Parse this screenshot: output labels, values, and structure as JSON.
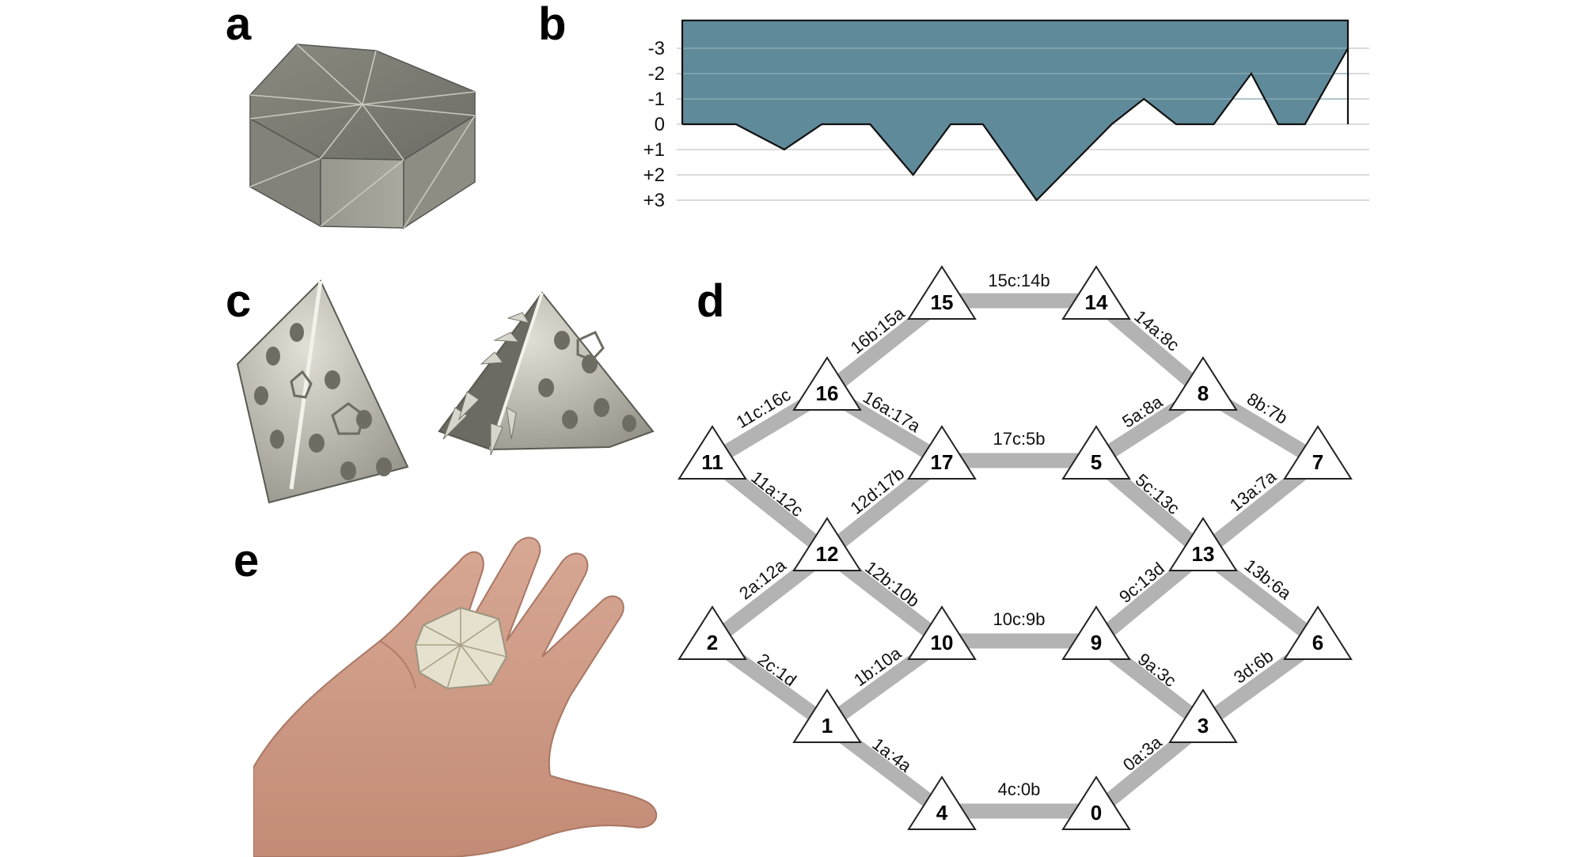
{
  "panels": {
    "a": "a",
    "b": "b",
    "c": "c",
    "d": "d",
    "e": "e"
  },
  "chart_data": {
    "type": "area",
    "title": "",
    "xlabel": "",
    "ylabel": "",
    "y_tick_labels": [
      "-3",
      "-2",
      "-1",
      "0",
      "+1",
      "+2",
      "+3"
    ],
    "y_tick_values": [
      -3,
      -2,
      -1,
      0,
      1,
      2,
      3
    ],
    "ylim": [
      3,
      -3
    ],
    "inverted_y": true,
    "grid": true,
    "fill_color": "#5f8a99",
    "x": [
      0,
      1,
      1.9,
      2.6,
      3.5,
      4.3,
      5.0,
      5.6,
      6.6,
      8.0,
      8.6,
      9.2,
      9.9,
      10.6,
      11.1,
      11.6,
      12.4
    ],
    "y": [
      0,
      0,
      1,
      0,
      0,
      2,
      0,
      0,
      3,
      0,
      -1,
      0,
      0,
      -2,
      0,
      0,
      -3
    ],
    "top_bound": -4.1
  },
  "graph": {
    "nodes": [
      {
        "id": "15",
        "label": "15"
      },
      {
        "id": "14",
        "label": "14"
      },
      {
        "id": "16",
        "label": "16"
      },
      {
        "id": "8",
        "label": "8"
      },
      {
        "id": "11",
        "label": "11"
      },
      {
        "id": "17",
        "label": "17"
      },
      {
        "id": "5",
        "label": "5"
      },
      {
        "id": "7",
        "label": "7"
      },
      {
        "id": "12",
        "label": "12"
      },
      {
        "id": "13",
        "label": "13"
      },
      {
        "id": "2",
        "label": "2"
      },
      {
        "id": "10",
        "label": "10"
      },
      {
        "id": "9",
        "label": "9"
      },
      {
        "id": "6",
        "label": "6"
      },
      {
        "id": "1",
        "label": "1"
      },
      {
        "id": "3",
        "label": "3"
      },
      {
        "id": "4",
        "label": "4"
      },
      {
        "id": "0",
        "label": "0"
      }
    ],
    "edges": [
      {
        "from": "15",
        "to": "14",
        "label": "15c:14b"
      },
      {
        "from": "16",
        "to": "15",
        "label": "16b:15a"
      },
      {
        "from": "14",
        "to": "8",
        "label": "14a:8c"
      },
      {
        "from": "11",
        "to": "16",
        "label": "11c:16c"
      },
      {
        "from": "16",
        "to": "17",
        "label": "16a:17a"
      },
      {
        "from": "5",
        "to": "8",
        "label": "5a:8a"
      },
      {
        "from": "8",
        "to": "7",
        "label": "8b:7b"
      },
      {
        "from": "17",
        "to": "5",
        "label": "17c:5b"
      },
      {
        "from": "11",
        "to": "12",
        "label": "11a:12c"
      },
      {
        "from": "12",
        "to": "17",
        "label": "12d:17b"
      },
      {
        "from": "5",
        "to": "13",
        "label": "5c:13c"
      },
      {
        "from": "13",
        "to": "7",
        "label": "13a:7a"
      },
      {
        "from": "2",
        "to": "12",
        "label": "2a:12a"
      },
      {
        "from": "12",
        "to": "10",
        "label": "12b:10b"
      },
      {
        "from": "9",
        "to": "13",
        "label": "9c:13d"
      },
      {
        "from": "13",
        "to": "6",
        "label": "13b:6a"
      },
      {
        "from": "10",
        "to": "9",
        "label": "10c:9b"
      },
      {
        "from": "2",
        "to": "1",
        "label": "2c:1d"
      },
      {
        "from": "1",
        "to": "10",
        "label": "1b:10a"
      },
      {
        "from": "9",
        "to": "3",
        "label": "9a:3c"
      },
      {
        "from": "3",
        "to": "6",
        "label": "3d:6b"
      },
      {
        "from": "1",
        "to": "4",
        "label": "1a:4a"
      },
      {
        "from": "0",
        "to": "3",
        "label": "0a:3a"
      },
      {
        "from": "4",
        "to": "0",
        "label": "4c:0b"
      }
    ]
  }
}
